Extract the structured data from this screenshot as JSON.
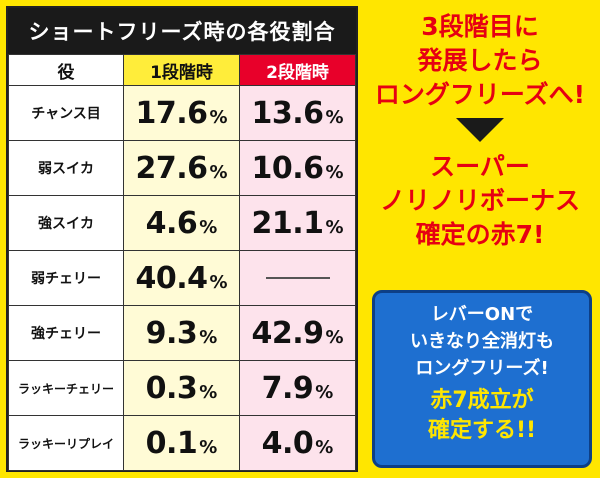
{
  "table": {
    "title": "ショートフリーズ時の各役割合",
    "headers": {
      "role": "役",
      "stage1": "1段階時",
      "stage2": "2段階時"
    },
    "rows": [
      {
        "role": "チャンス目",
        "s1": "17.6",
        "s2": "13.6"
      },
      {
        "role": "弱スイカ",
        "s1": "27.6",
        "s2": "10.6"
      },
      {
        "role": "強スイカ",
        "s1": "4.6",
        "s2": "21.1"
      },
      {
        "role": "弱チェリー",
        "s1": "40.4",
        "s2": ""
      },
      {
        "role": "強チェリー",
        "s1": "9.3",
        "s2": "42.9"
      },
      {
        "role": "ラッキーチェリー",
        "s1": "0.3",
        "s2": "7.9"
      },
      {
        "role": "ラッキーリプレイ",
        "s1": "0.1",
        "s2": "4.0"
      }
    ],
    "pct": "%"
  },
  "right": {
    "top_lines": [
      "3段階目に",
      "発展したら",
      "ロングフリーズへ!"
    ],
    "bottom_lines": [
      "スーパー",
      "ノリノリボーナス",
      "確定の赤7!"
    ]
  },
  "box": {
    "white_lines": [
      "レバーONで",
      "いきなり全消灯も",
      "ロングフリーズ!"
    ],
    "yellow_lines": [
      "赤7成立が",
      "確定する!!"
    ]
  },
  "colors": {
    "background": "#ffe600",
    "accent_red": "#e60012",
    "box_blue": "#1e6fd0"
  }
}
